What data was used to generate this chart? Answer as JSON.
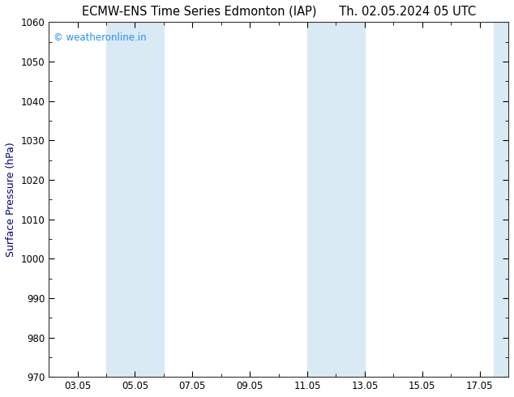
{
  "title_left": "ECMW-ENS Time Series Edmonton (IAP)",
  "title_right": "Th. 02.05.2024 05 UTC",
  "ylabel": "Surface Pressure (hPa)",
  "ylim": [
    970,
    1060
  ],
  "yticks": [
    970,
    980,
    990,
    1000,
    1010,
    1020,
    1030,
    1040,
    1050,
    1060
  ],
  "x_min": 2,
  "x_max": 18,
  "xtick_labels": [
    "03.05",
    "05.05",
    "07.05",
    "09.05",
    "11.05",
    "13.05",
    "15.05",
    "17.05"
  ],
  "xtick_positions": [
    3,
    5,
    7,
    9,
    11,
    13,
    15,
    17
  ],
  "shaded_bands": [
    {
      "x_start": 4,
      "x_end": 6
    },
    {
      "x_start": 11,
      "x_end": 13
    },
    {
      "x_start": 17.5,
      "x_end": 18
    }
  ],
  "shaded_color": "#daeaf5",
  "watermark_text": "© weatheronline.in",
  "watermark_color": "#1E90FF",
  "background_color": "#ffffff",
  "spine_color": "#333333",
  "title_fontsize": 10.5,
  "label_fontsize": 9,
  "tick_fontsize": 8.5
}
